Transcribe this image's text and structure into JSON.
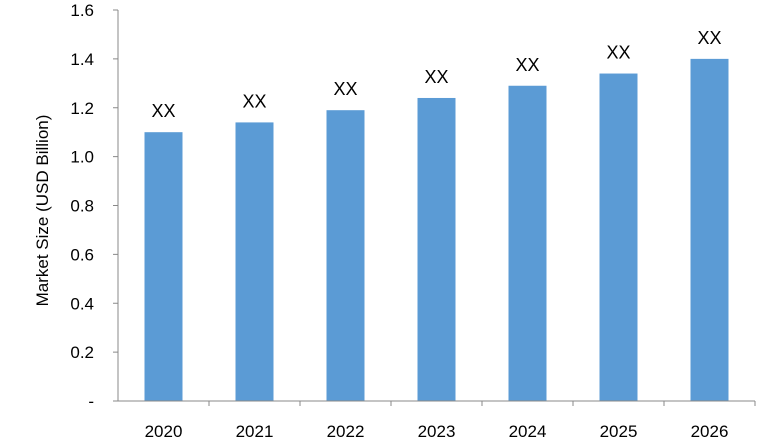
{
  "chart_data": {
    "type": "bar",
    "title": "",
    "xlabel": "",
    "ylabel": "Market Size (USD Billion)",
    "categories": [
      "2020",
      "2021",
      "2022",
      "2023",
      "2024",
      "2025",
      "2026"
    ],
    "series": [
      {
        "values": [
          1.1,
          1.14,
          1.19,
          1.24,
          1.29,
          1.34,
          1.4
        ],
        "data_labels": [
          "XX",
          "XX",
          "XX",
          "XX",
          "XX",
          "XX",
          "XX"
        ],
        "color": "#5B9BD5"
      }
    ],
    "ylim": [
      0,
      1.6
    ],
    "y_ticks": [
      {
        "value": 0,
        "label": "-"
      },
      {
        "value": 0.2,
        "label": "0.2"
      },
      {
        "value": 0.4,
        "label": "0.4"
      },
      {
        "value": 0.6,
        "label": "0.6"
      },
      {
        "value": 0.8,
        "label": "0.8"
      },
      {
        "value": 1.0,
        "label": "1.0"
      },
      {
        "value": 1.2,
        "label": "1.2"
      },
      {
        "value": 1.4,
        "label": "1.4"
      },
      {
        "value": 1.6,
        "label": "1.6"
      }
    ],
    "grid": false,
    "legend": "none",
    "axis_color": "#888888",
    "text_color": "#000000"
  }
}
